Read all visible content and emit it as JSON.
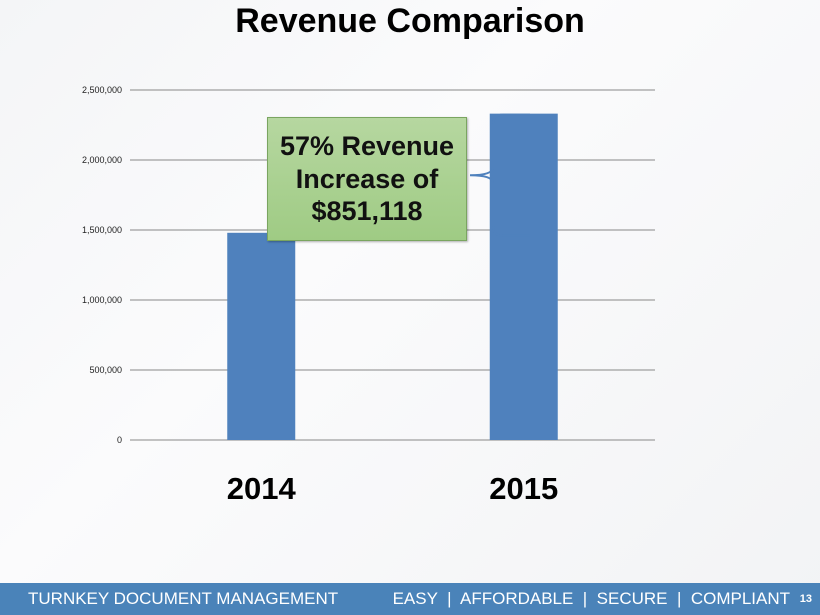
{
  "chart_data": {
    "type": "bar",
    "title": "Revenue Comparison",
    "categories": [
      "2014",
      "2015"
    ],
    "values": [
      1480000,
      2331118
    ],
    "ylim": [
      0,
      2500000
    ],
    "yticks": [
      0,
      500000,
      1000000,
      1500000,
      2000000,
      2500000
    ],
    "ytick_labels": [
      "0",
      "500,000",
      "1,000,000",
      "1,500,000",
      "2,000,000",
      "2,500,000"
    ],
    "xlabel": "",
    "ylabel": "",
    "grid": true,
    "bar_color": "#4f81bd",
    "annotation": [
      "57% Revenue",
      "Increase of",
      "$851,118"
    ]
  },
  "footer": {
    "left": "TURNKEY DOCUMENT MANAGEMENT",
    "right": "EASY  |  AFFORDABLE  |  SECURE  |  COMPLIANT",
    "page": "13"
  },
  "colors": {
    "footer": "#4a83b9",
    "callout": "#a9d18e"
  }
}
